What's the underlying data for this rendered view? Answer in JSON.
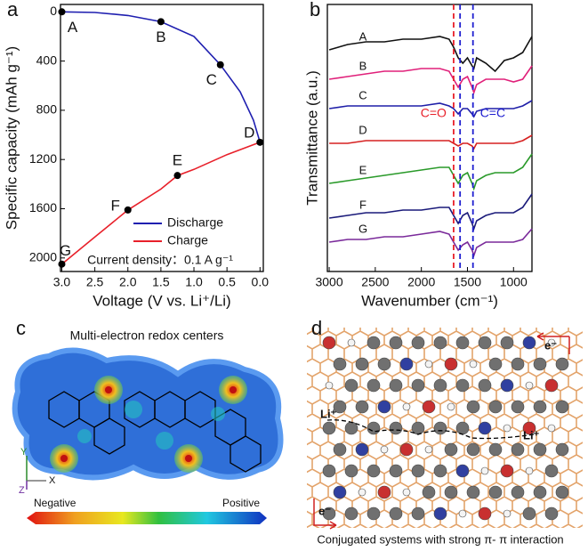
{
  "chart_data": [
    {
      "type": "line",
      "panel_label": "a",
      "x_label": "Voltage (V vs. Li⁺/Li)",
      "y_label": "Specific capacity (mAh g⁻¹)",
      "xlim": [
        3.02,
        -0.05
      ],
      "ylim": [
        2110,
        -60
      ],
      "xticks": [
        {
          "value": 3.0,
          "label": "3.0"
        },
        {
          "value": 2.5,
          "label": "2.5"
        },
        {
          "value": 2.0,
          "label": "2.0"
        },
        {
          "value": 1.5,
          "label": "1.5"
        },
        {
          "value": 1.0,
          "label": "1.0"
        },
        {
          "value": 0.5,
          "label": "0.5"
        },
        {
          "value": 0.0,
          "label": "0.0"
        }
      ],
      "yticks": [
        0,
        400,
        800,
        1200,
        1600,
        2000
      ],
      "series": [
        {
          "name": "Discharge",
          "color": "#1f1fb0",
          "x": [
            3.0,
            2.5,
            2.0,
            1.5,
            1.0,
            0.6,
            0.3,
            0.1,
            0.0
          ],
          "values": [
            0,
            5,
            30,
            80,
            200,
            430,
            650,
            880,
            1060
          ]
        },
        {
          "name": "Charge",
          "color": "#e8202a",
          "x": [
            0.0,
            0.5,
            1.0,
            1.25,
            1.5,
            2.0,
            2.5,
            3.0
          ],
          "values": [
            1060,
            1160,
            1280,
            1330,
            1440,
            1610,
            1830,
            2050
          ]
        }
      ],
      "points": [
        {
          "label": "A",
          "x": 3.0,
          "y": 0
        },
        {
          "label": "B",
          "x": 1.5,
          "y": 80
        },
        {
          "label": "C",
          "x": 0.6,
          "y": 430
        },
        {
          "label": "D",
          "x": 0.0,
          "y": 1060
        },
        {
          "label": "E",
          "x": 1.25,
          "y": 1330
        },
        {
          "label": "F",
          "x": 2.0,
          "y": 1610
        },
        {
          "label": "G",
          "x": 3.0,
          "y": 2050
        }
      ],
      "annotation": "Current density：0.1 A g⁻¹"
    },
    {
      "type": "line",
      "panel_label": "b",
      "x_label": "Wavenumber (cm⁻¹)",
      "y_label": "Transmittance (a.u.)",
      "xlim": [
        3020,
        800
      ],
      "ylim": [
        0,
        100
      ],
      "xticks": [
        3000,
        2500,
        2000,
        1500,
        1000
      ],
      "x": [
        3000,
        2800,
        2600,
        2400,
        2200,
        2000,
        1800,
        1700,
        1650,
        1600,
        1550,
        1500,
        1450,
        1430,
        1400,
        1300,
        1200,
        1100,
        1000,
        900,
        800
      ],
      "series": [
        {
          "name": "A",
          "color": "#111111",
          "values": [
            83,
            85,
            86,
            86,
            87,
            87,
            88,
            87,
            84,
            80,
            78,
            80,
            77,
            76,
            80,
            78,
            75,
            79,
            80,
            82,
            88
          ]
        },
        {
          "name": "B",
          "color": "#e0207a",
          "values": [
            72,
            73,
            74,
            75,
            75,
            76,
            76,
            75,
            72,
            69,
            72,
            73,
            69,
            67,
            70,
            72,
            72,
            72,
            71,
            72,
            77
          ]
        },
        {
          "name": "C",
          "color": "#1f1fa8",
          "values": [
            61,
            62,
            62,
            62,
            62,
            62,
            63,
            62,
            61,
            59,
            61,
            61,
            59,
            58,
            60,
            61,
            61,
            61,
            61,
            62,
            64
          ]
        },
        {
          "name": "D",
          "color": "#d62020",
          "values": [
            48,
            48,
            49,
            49,
            49,
            49,
            49,
            49,
            48,
            47,
            48,
            48,
            47,
            46,
            48,
            48,
            48,
            48,
            48,
            49,
            51
          ]
        },
        {
          "name": "E",
          "color": "#2a9a2a",
          "values": [
            33,
            34,
            35,
            36,
            37,
            38,
            39,
            39,
            36,
            33,
            36,
            37,
            33,
            31,
            34,
            36,
            37,
            37,
            37,
            39,
            44
          ]
        },
        {
          "name": "F",
          "color": "#1a1a7a",
          "values": [
            20,
            21,
            22,
            22,
            23,
            23,
            24,
            24,
            21,
            18,
            21,
            22,
            18,
            16,
            19,
            21,
            22,
            22,
            22,
            24,
            29
          ]
        },
        {
          "name": "G",
          "color": "#7a2a9a",
          "values": [
            11,
            12,
            12,
            13,
            13,
            14,
            15,
            14,
            11,
            8,
            10,
            11,
            8,
            6,
            9,
            11,
            11,
            11,
            11,
            12,
            16
          ]
        }
      ],
      "reference_lines": [
        {
          "x": 1650,
          "color": "#e8202a",
          "label": "C=O"
        },
        {
          "x": 1580,
          "color": "#1f1fd0"
        },
        {
          "x": 1440,
          "color": "#1f1fd0",
          "label": "C=C"
        }
      ]
    }
  ],
  "panels": [
    {
      "label": "c",
      "title": "Multi-electron redox centers",
      "scale_low": "Negative",
      "scale_high": "Positive",
      "axes": [
        "Y",
        "Z",
        "X"
      ]
    },
    {
      "label": "d",
      "caption": "Conjugated systems with strong π- π interaction",
      "ion_labels": [
        "Li⁺",
        "Li⁺"
      ],
      "electron_labels": [
        "e⁻",
        "e⁻"
      ]
    }
  ]
}
